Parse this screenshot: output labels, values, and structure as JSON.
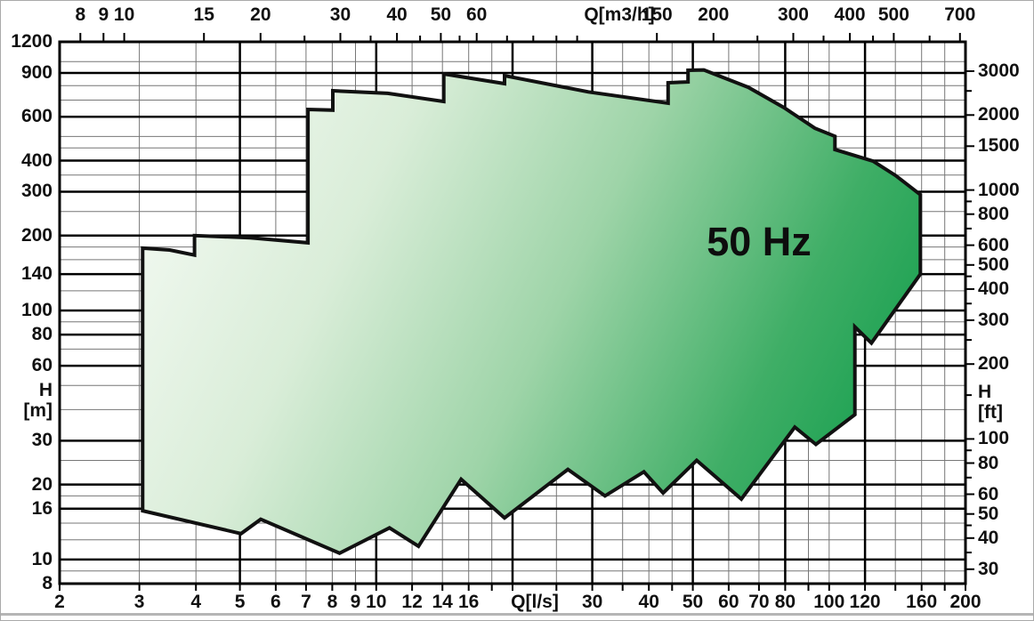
{
  "chart_data": {
    "type": "area",
    "description": "Pump performance range envelope, head H vs flow Q, log-log axes",
    "annotation": "50 Hz",
    "x_axis_bottom": {
      "unit": "Q[l/s]",
      "range": [
        2,
        200
      ],
      "tick_labels": [
        2,
        3,
        4,
        5,
        6,
        7,
        8,
        9,
        10,
        12,
        14,
        16,
        30,
        40,
        50,
        60,
        70,
        80,
        100,
        120,
        160,
        200
      ],
      "ticks": [
        2,
        3,
        4,
        5,
        6,
        7,
        8,
        9,
        10,
        12,
        14,
        16,
        18,
        20,
        25,
        30,
        35,
        40,
        45,
        50,
        60,
        70,
        80,
        90,
        100,
        120,
        140,
        160,
        180,
        200
      ]
    },
    "x_axis_top": {
      "unit": "Q[m3/h]",
      "range": [
        7.2,
        720
      ],
      "tick_labels": [
        8,
        9,
        10,
        15,
        20,
        30,
        40,
        50,
        60,
        150,
        200,
        300,
        400,
        500,
        700
      ],
      "ticks": [
        8,
        9,
        10,
        15,
        20,
        25,
        30,
        35,
        40,
        45,
        50,
        55,
        60,
        70,
        80,
        90,
        100,
        150,
        200,
        250,
        300,
        350,
        400,
        450,
        500,
        600,
        700
      ]
    },
    "y_axis_left": {
      "unit": [
        "H",
        "[m]"
      ],
      "range": [
        8,
        1200
      ],
      "tick_labels": [
        1200,
        900,
        600,
        400,
        300,
        200,
        140,
        100,
        80,
        60,
        30,
        20,
        16,
        10,
        8
      ]
    },
    "y_axis_right": {
      "unit": [
        "H",
        "[ft]"
      ],
      "tick_labels": [
        3000,
        2000,
        1500,
        1000,
        800,
        600,
        500,
        400,
        300,
        200,
        100,
        80,
        60,
        50,
        40,
        30
      ],
      "ticks": [
        3000,
        2500,
        2000,
        1500,
        1000,
        900,
        800,
        700,
        600,
        500,
        450,
        400,
        350,
        300,
        250,
        200,
        150,
        100,
        90,
        80,
        70,
        60,
        50,
        45,
        40,
        35,
        30
      ]
    },
    "grid": {
      "x_major": [
        5,
        10,
        20,
        30,
        50,
        80,
        120
      ],
      "x_minor": [
        3,
        4,
        6,
        7,
        8,
        9,
        12,
        14,
        16,
        18,
        25,
        35,
        40,
        45,
        60,
        70,
        90,
        100,
        140,
        160,
        180
      ],
      "y_major": [
        10,
        16,
        20,
        30,
        60,
        80,
        100,
        140,
        200,
        300,
        400,
        600,
        900
      ],
      "y_minor": [
        9,
        12,
        14,
        18,
        25,
        40,
        50,
        70,
        90,
        120,
        160,
        180,
        250,
        350,
        450,
        500,
        700,
        800,
        1000
      ]
    },
    "envelope_units": "points are [Q in l/s, H in m]",
    "envelope_points_q_h": [
      [
        3.05,
        178
      ],
      [
        3.5,
        175
      ],
      [
        3.97,
        167
      ],
      [
        3.97,
        200
      ],
      [
        5.27,
        196
      ],
      [
        7.07,
        187
      ],
      [
        7.07,
        642
      ],
      [
        8.02,
        638
      ],
      [
        8.02,
        763
      ],
      [
        10.6,
        745
      ],
      [
        14.1,
        691
      ],
      [
        14.1,
        892
      ],
      [
        19.2,
        815
      ],
      [
        19.2,
        878
      ],
      [
        29.4,
        755
      ],
      [
        44.1,
        680
      ],
      [
        44.1,
        822
      ],
      [
        48.8,
        828
      ],
      [
        48.8,
        922
      ],
      [
        52.9,
        925
      ],
      [
        66.3,
        788
      ],
      [
        79.5,
        653
      ],
      [
        93.0,
        540
      ],
      [
        103.0,
        501
      ],
      [
        103.0,
        443
      ],
      [
        125.0,
        398
      ],
      [
        140.0,
        349
      ],
      [
        150.0,
        317
      ],
      [
        159.0,
        292
      ],
      [
        159.0,
        140
      ],
      [
        124.0,
        74
      ],
      [
        114.0,
        86
      ],
      [
        114.0,
        38.2
      ],
      [
        93.5,
        29
      ],
      [
        84.0,
        34
      ],
      [
        64.0,
        17.5
      ],
      [
        51.0,
        25
      ],
      [
        43.0,
        18.5
      ],
      [
        39.0,
        22.5
      ],
      [
        32.0,
        18
      ],
      [
        26.5,
        23
      ],
      [
        19.2,
        14.7
      ],
      [
        15.4,
        21
      ],
      [
        12.4,
        11.3
      ],
      [
        10.7,
        13.4
      ],
      [
        8.3,
        10.6
      ],
      [
        5.56,
        14.5
      ],
      [
        5.03,
        12.7
      ],
      [
        3.05,
        15.7
      ]
    ],
    "colors": {
      "fill_light": "#f8fcf7",
      "fill_mid1": "#d9edd8",
      "fill_mid2": "#9ed4a8",
      "fill_mid3": "#3fae66",
      "fill_dark": "#0f9c4a",
      "outline": "#111111",
      "grid_minor": "#777777",
      "grid_major": "#000000"
    }
  }
}
